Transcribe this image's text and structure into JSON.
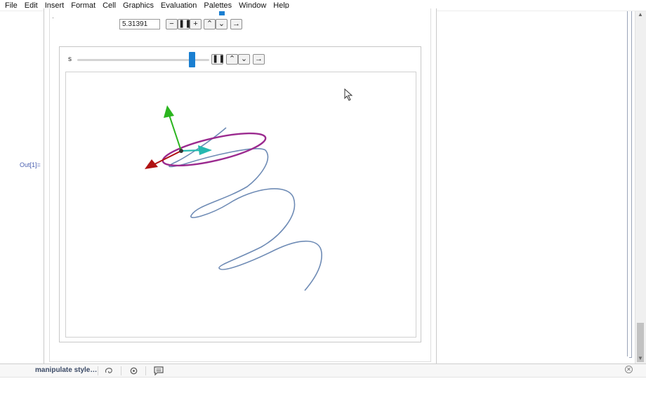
{
  "menu": [
    "File",
    "Edit",
    "Insert",
    "Format",
    "Cell",
    "Graphics",
    "Evaluation",
    "Palettes",
    "Window",
    "Help"
  ],
  "top_control": {
    "value_field": "5.31391",
    "buttons": [
      "−",
      "❚❚",
      "+",
      "⌃",
      "⌄",
      "→"
    ]
  },
  "manipulate": {
    "slider_label": "s",
    "slider_position": 0.87,
    "buttons": [
      "❚❚",
      "⌃",
      "⌄",
      "→"
    ]
  },
  "output_label": "Out[1]=",
  "bottom_bar": {
    "suggestion": "manipulate style…",
    "icons": [
      "spiral-icon",
      "settings-icon",
      "comment-icon",
      "close-icon"
    ]
  },
  "colors": {
    "curve": "#6e8bb5",
    "ellipse": "#9b2a8f",
    "arrow_green": "#2bb51f",
    "arrow_cyan": "#25b8b0",
    "arrow_red": "#b01212",
    "accent": "#1a7fd1"
  }
}
